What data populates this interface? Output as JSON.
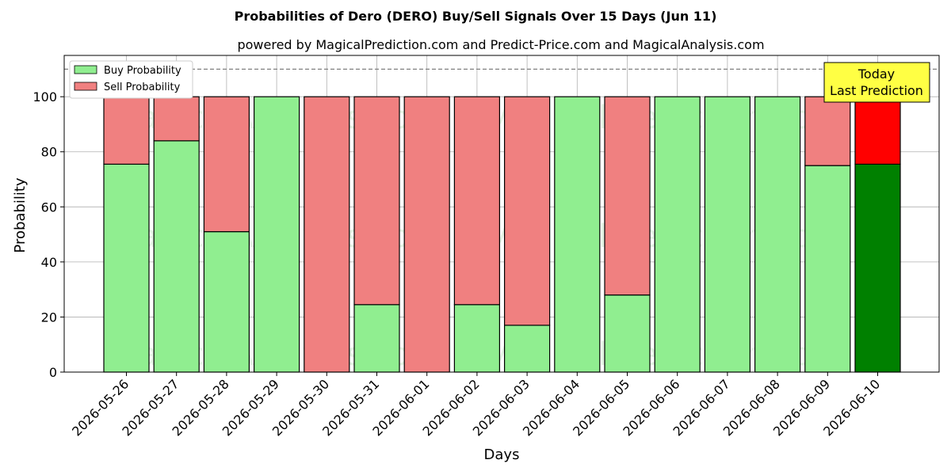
{
  "chart_data": {
    "type": "bar",
    "stacked": true,
    "title": "Probabilities of Dero (DERO) Buy/Sell Signals Over 15 Days (Jun 11)",
    "subtitle": "powered by MagicalPrediction.com and Predict-Price.com and MagicalAnalysis.com",
    "xlabel": "Days",
    "ylabel": "Probability",
    "ylim": [
      0,
      115
    ],
    "yticks": [
      0,
      20,
      40,
      60,
      80,
      100
    ],
    "reference_line": 110,
    "grid": true,
    "legend_position": "top-left",
    "categories": [
      "2026-05-26",
      "2026-05-27",
      "2026-05-28",
      "2026-05-29",
      "2026-05-30",
      "2026-05-31",
      "2026-06-01",
      "2026-06-02",
      "2026-06-03",
      "2026-06-04",
      "2026-06-05",
      "2026-06-06",
      "2026-06-07",
      "2026-06-08",
      "2026-06-09",
      "2026-06-10"
    ],
    "series": [
      {
        "name": "Buy Probability",
        "color": "#90ee90",
        "highlight_color": "#008000",
        "values": [
          75.5,
          84,
          51,
          100,
          0,
          24.5,
          0,
          24.5,
          17,
          100,
          28,
          100,
          100,
          100,
          75,
          75.5
        ]
      },
      {
        "name": "Sell Probability",
        "color": "#f08080",
        "highlight_color": "#ff0000",
        "values": [
          24.5,
          16,
          49,
          0,
          100,
          75.5,
          100,
          75.5,
          83,
          0,
          72,
          0,
          0,
          0,
          25,
          24.5
        ]
      }
    ],
    "annotation": {
      "lines": [
        "Today",
        "Last Prediction"
      ],
      "color": "#ffff44"
    },
    "watermarks": [
      "MagicalAnalysis.com",
      "MagicalPrediction.com"
    ]
  }
}
